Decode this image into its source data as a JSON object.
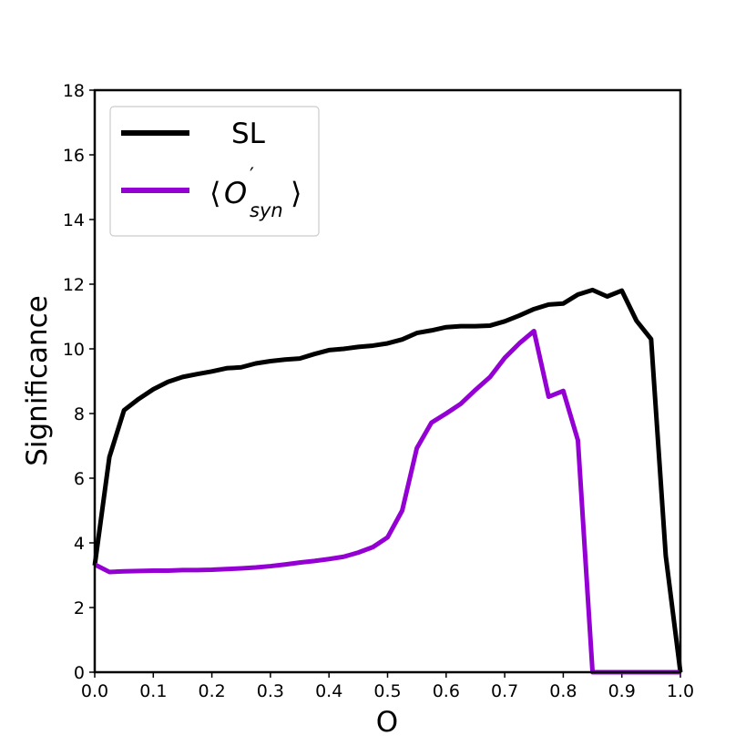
{
  "chart_data": {
    "type": "line",
    "title": "",
    "xlabel": "O",
    "ylabel": "Significance",
    "xlim": [
      0.0,
      1.0
    ],
    "ylim": [
      0,
      18
    ],
    "xticks": [
      "0.0",
      "0.1",
      "0.2",
      "0.3",
      "0.4",
      "0.5",
      "0.6",
      "0.7",
      "0.8",
      "0.9",
      "1.0"
    ],
    "yticks": [
      "0",
      "2",
      "4",
      "6",
      "8",
      "10",
      "12",
      "14",
      "16",
      "18"
    ],
    "grid": false,
    "legend_position": "top-left",
    "series": [
      {
        "name": "SL",
        "color": "#000000",
        "x": [
          0.0,
          0.025,
          0.05,
          0.075,
          0.1,
          0.125,
          0.15,
          0.175,
          0.2,
          0.225,
          0.25,
          0.275,
          0.3,
          0.325,
          0.35,
          0.375,
          0.4,
          0.425,
          0.45,
          0.475,
          0.5,
          0.525,
          0.55,
          0.575,
          0.6,
          0.625,
          0.65,
          0.675,
          0.7,
          0.725,
          0.75,
          0.775,
          0.8,
          0.825,
          0.85,
          0.875,
          0.9,
          0.925,
          0.95,
          0.975,
          1.0
        ],
        "y": [
          3.3,
          6.65,
          8.1,
          8.45,
          8.75,
          8.98,
          9.13,
          9.22,
          9.3,
          9.4,
          9.43,
          9.55,
          9.62,
          9.67,
          9.7,
          9.84,
          9.96,
          10.0,
          10.06,
          10.1,
          10.17,
          10.29,
          10.49,
          10.57,
          10.67,
          10.7,
          10.7,
          10.72,
          10.85,
          11.03,
          11.23,
          11.37,
          11.4,
          11.68,
          11.82,
          11.62,
          11.8,
          10.87,
          10.3,
          3.6,
          0.0
        ]
      },
      {
        "name": "⟨O'syn⟩",
        "color": "#9400d3",
        "x": [
          0.0,
          0.025,
          0.05,
          0.075,
          0.1,
          0.125,
          0.15,
          0.175,
          0.2,
          0.225,
          0.25,
          0.275,
          0.3,
          0.325,
          0.35,
          0.375,
          0.4,
          0.425,
          0.45,
          0.475,
          0.5,
          0.525,
          0.55,
          0.575,
          0.6,
          0.625,
          0.65,
          0.675,
          0.7,
          0.725,
          0.75,
          0.775,
          0.8,
          0.825,
          0.85,
          0.875,
          0.9,
          0.925,
          0.95,
          0.975,
          1.0
        ],
        "y": [
          3.33,
          3.1,
          3.12,
          3.13,
          3.14,
          3.14,
          3.16,
          3.16,
          3.17,
          3.19,
          3.21,
          3.24,
          3.28,
          3.33,
          3.39,
          3.44,
          3.5,
          3.57,
          3.7,
          3.87,
          4.17,
          5.0,
          6.93,
          7.72,
          8.0,
          8.3,
          8.73,
          9.13,
          9.72,
          10.17,
          10.55,
          8.52,
          8.7,
          7.17,
          0.0,
          0.0,
          0.0,
          0.0,
          0.0,
          0.0,
          0.0
        ]
      }
    ],
    "legend": {
      "sl_label": "SL",
      "osyn_main": "O",
      "osyn_prime": "′",
      "osyn_sub": "syn",
      "osyn_open": "⟨",
      "osyn_close": "⟩"
    }
  }
}
